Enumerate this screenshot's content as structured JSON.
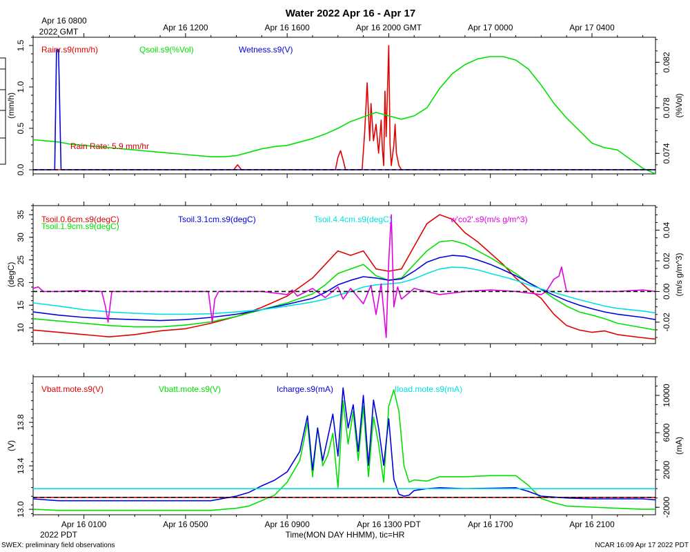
{
  "header": {
    "title": "Water 2022 Apr 16 - Apr 17",
    "gmt_first_line1": "Apr 16 0800",
    "gmt_first_line2": "2022 GMT",
    "gmt_ticks": [
      "Apr 16 1200",
      "Apr 16 1600",
      "Apr 16 2000 GMT",
      "Apr 17 0000",
      "Apr 17 0400"
    ]
  },
  "footer": {
    "pdt_ticks": [
      "Apr 16 0100",
      "Apr 16 0500",
      "Apr 16 0900",
      "Apr 16 1300 PDT",
      "Apr 16 1700",
      "Apr 16 2100"
    ],
    "pdt_year": "2022 PDT",
    "xlabel": "Time(MON DAY HHMM), tic=HR",
    "left_note": "SWEX: preliminary field observations",
    "right_note": "NCAR 16:09 Apr 17 2022 PDT"
  },
  "chart_data": [
    {
      "type": "line",
      "panel": "water",
      "x_unit": "hours since Apr 16 0000 PDT",
      "xlim": [
        -1,
        23.5
      ],
      "left_axis": {
        "label": "(mm/h)",
        "ylim": [
          -0.05,
          1.6
        ],
        "ticks": [
          "0.0",
          "0.5",
          "1.0",
          "1.5"
        ],
        "tick_values": [
          0,
          0.5,
          1.0,
          1.5
        ]
      },
      "right_axis": {
        "label": "(%Vol)",
        "ylim": [
          0.0722,
          0.0842
        ],
        "ticks": [
          "0.074",
          "0.078",
          "0.082"
        ],
        "tick_values": [
          0.074,
          0.078,
          0.082
        ]
      },
      "annotation": "Rain Rate: 5.9 mm/hr",
      "series": [
        {
          "name": "Rainr.s9(mm/h)",
          "color": "#e00000",
          "axis": "left",
          "x": [
            -1,
            6.9,
            7.05,
            7.2,
            10.9,
            11.0,
            11.1,
            11.2,
            11.3,
            11.95,
            12.05,
            12.15,
            12.25,
            12.3,
            12.4,
            12.5,
            12.6,
            12.7,
            12.75,
            12.8,
            12.85,
            12.9,
            13.0,
            13.05,
            13.1,
            13.2,
            13.25,
            13.3,
            13.4,
            13.5,
            23.5
          ],
          "values": [
            0,
            0,
            0.06,
            0,
            0,
            0.15,
            0.23,
            0.12,
            0,
            0,
            0.45,
            1.05,
            0.35,
            0.8,
            0.35,
            0.55,
            0.2,
            0.6,
            0.25,
            0.05,
            0.95,
            0.4,
            1.5,
            0.3,
            0.05,
            0.3,
            0.55,
            0.2,
            0.05,
            0,
            0
          ]
        },
        {
          "name": "Qsoil.s9(%Vol)",
          "color": "#00e000",
          "axis": "right",
          "x": [
            -1,
            -0.5,
            0,
            0.5,
            1,
            1.5,
            2,
            2.5,
            3,
            3.5,
            4,
            4.5,
            5,
            5.5,
            6,
            6.5,
            7,
            7.5,
            8,
            8.5,
            9,
            9.5,
            10,
            10.5,
            11,
            11.5,
            12,
            12.5,
            13,
            13.5,
            14,
            14.5,
            15,
            15.5,
            16,
            16.5,
            17,
            17.5,
            18,
            18.5,
            19,
            19.5,
            20,
            20.5,
            21,
            21.5,
            22,
            22.5,
            23,
            23.5
          ],
          "values": [
            0.0752,
            0.0751,
            0.075,
            0.0748,
            0.0747,
            0.0746,
            0.0745,
            0.0744,
            0.0743,
            0.0742,
            0.0741,
            0.074,
            0.0739,
            0.0738,
            0.0737,
            0.0737,
            0.0738,
            0.0741,
            0.0744,
            0.0746,
            0.0747,
            0.075,
            0.0753,
            0.0757,
            0.0762,
            0.0768,
            0.0772,
            0.0776,
            0.0773,
            0.077,
            0.0773,
            0.078,
            0.0797,
            0.081,
            0.0818,
            0.0823,
            0.0825,
            0.0825,
            0.0822,
            0.0814,
            0.08,
            0.0784,
            0.0771,
            0.076,
            0.0749,
            0.0745,
            0.0743,
            0.0735,
            0.0727,
            0.0722
          ]
        },
        {
          "name": "Wetness.s9(V)",
          "color": "#0000e0",
          "axis": "left",
          "x": [
            -1,
            -0.15,
            -0.08,
            0.0,
            0.1,
            23.5
          ],
          "values": [
            0,
            0,
            1.45,
            1.45,
            0,
            0
          ]
        }
      ],
      "reference_lines": [
        {
          "value": 0,
          "axis": "left",
          "style": "dashed",
          "color": "#000000"
        }
      ]
    },
    {
      "type": "line",
      "panel": "soil temperature",
      "x_unit": "hours since Apr 16 0000 PDT",
      "xlim": [
        -1,
        23.5
      ],
      "left_axis": {
        "label": "(degC)",
        "ylim": [
          6.5,
          37
        ],
        "ticks": [
          "10",
          "15",
          "20",
          "25",
          "30",
          "35"
        ],
        "tick_values": [
          10,
          15,
          20,
          25,
          30,
          35
        ]
      },
      "right_axis": {
        "label": "(m/s g/m^3)",
        "ylim": [
          -0.034,
          0.056
        ],
        "ticks": [
          "-0.02",
          "0.00",
          "0.02",
          "0.04"
        ],
        "tick_values": [
          -0.02,
          0,
          0.02,
          0.04
        ]
      },
      "series": [
        {
          "name": "Tsoil.0.6cm.s9(degC)",
          "color": "#e00000",
          "axis": "left",
          "x": [
            -1,
            0,
            1,
            2,
            3,
            4,
            5,
            6,
            7,
            8,
            9,
            10,
            10.5,
            11,
            11.5,
            12,
            12.5,
            13,
            13.5,
            14,
            14.5,
            15,
            15.5,
            16,
            16.5,
            17,
            17.5,
            18,
            18.5,
            19,
            19.5,
            20,
            20.5,
            21,
            21.5,
            22,
            23,
            23.5
          ],
          "values": [
            9.5,
            9,
            8.5,
            8,
            8.5,
            9.3,
            9.8,
            11,
            12.5,
            14.5,
            17,
            21,
            24,
            27,
            26,
            27,
            23,
            22.5,
            23,
            28,
            33,
            35,
            34,
            31,
            29,
            26.5,
            24,
            21,
            18.5,
            16.5,
            13,
            10.5,
            9.5,
            9,
            9.3,
            8.5,
            7.8,
            7.5
          ]
        },
        {
          "name": "Tsoil.1.9cm.s9(degC)",
          "color": "#00e000",
          "axis": "left",
          "x": [
            -1,
            0,
            1,
            2,
            3,
            4,
            5,
            6,
            7,
            8,
            9,
            10,
            10.5,
            11,
            11.5,
            12,
            12.5,
            13,
            13.5,
            14,
            14.5,
            15,
            15.5,
            16,
            16.5,
            17,
            17.5,
            18,
            18.5,
            19,
            19.5,
            20,
            20.5,
            21,
            21.5,
            22,
            23,
            23.5
          ],
          "values": [
            12,
            11.5,
            11,
            10.5,
            10.2,
            10.2,
            10.6,
            11.3,
            12.5,
            14,
            15.5,
            17.5,
            19.5,
            22,
            23,
            24,
            21.5,
            20.5,
            21,
            24,
            27,
            29,
            29.3,
            28.5,
            27,
            25.5,
            23.8,
            22,
            20,
            18.5,
            16.5,
            14.8,
            13.5,
            12.8,
            12,
            11,
            10,
            9.5
          ]
        },
        {
          "name": "Tsoil.3.1cm.s9(degC)",
          "color": "#0000e0",
          "axis": "left",
          "x": [
            -1,
            0,
            1,
            2,
            3,
            4,
            5,
            6,
            7,
            8,
            9,
            10,
            10.5,
            11,
            11.5,
            12,
            12.5,
            13,
            13.5,
            14,
            14.5,
            15,
            15.5,
            16,
            16.5,
            17,
            17.5,
            18,
            18.5,
            19,
            19.5,
            20,
            20.5,
            21,
            21.5,
            22,
            23,
            23.5
          ],
          "values": [
            13.5,
            12.8,
            12.3,
            12,
            11.8,
            11.6,
            11.8,
            12.3,
            13,
            14,
            15.2,
            16.5,
            17.8,
            19.5,
            20.5,
            21.3,
            21,
            20.5,
            20.8,
            22.5,
            24.5,
            25.5,
            26,
            25.8,
            25,
            24,
            22.8,
            21.5,
            20,
            18.5,
            17.2,
            16,
            15,
            14.2,
            13.5,
            13,
            12.3,
            11.8
          ]
        },
        {
          "name": "Tsoil.4.4cm.s9(degC)",
          "color": "#00e0e0",
          "axis": "left",
          "x": [
            -1,
            0,
            1,
            2,
            3,
            4,
            5,
            6,
            7,
            8,
            9,
            10,
            10.5,
            11,
            11.5,
            12,
            12.5,
            13,
            13.5,
            14,
            14.5,
            15,
            15.5,
            16,
            16.5,
            17,
            17.5,
            18,
            18.5,
            19,
            19.5,
            20,
            20.5,
            21,
            21.5,
            22,
            23,
            23.5
          ],
          "values": [
            15.5,
            14.8,
            14,
            13.5,
            13.2,
            13,
            13,
            13.1,
            13.5,
            14,
            14.8,
            15.7,
            16.3,
            17.2,
            18,
            19,
            19.5,
            19.7,
            20,
            20.8,
            22,
            23,
            23.4,
            23.3,
            22.8,
            22,
            21.3,
            20.5,
            19.5,
            18.6,
            17.8,
            17,
            16.2,
            15.5,
            14.8,
            14.3,
            13.7,
            13.3
          ]
        },
        {
          "name": "w'co2'.s9(m/s g/m^3)",
          "color": "#e000e0",
          "axis": "right",
          "x": [
            -1,
            -0.8,
            -0.6,
            0,
            1,
            1.7,
            1.85,
            1.95,
            2.1,
            3,
            5.9,
            6.05,
            6.15,
            6.3,
            8,
            9,
            9.2,
            9.4,
            10,
            10.5,
            11,
            11.2,
            11.5,
            12,
            12.3,
            12.5,
            12.7,
            12.9,
            13.0,
            13.1,
            13.2,
            13.35,
            13.5,
            14,
            15,
            16,
            17,
            18,
            19,
            19.2,
            19.5,
            19.7,
            19.8,
            20,
            21,
            22,
            23,
            23.5
          ],
          "values": [
            0.002,
            0.003,
            0.0,
            0.0,
            0.0005,
            0.0,
            -0.01,
            -0.02,
            0.0,
            0.0,
            0.0,
            -0.02,
            -0.005,
            0.0,
            0.0,
            -0.002,
            0.001,
            -0.003,
            0.002,
            -0.004,
            0.003,
            -0.005,
            0.002,
            -0.008,
            0.004,
            -0.015,
            0.005,
            -0.03,
            0.02,
            0.05,
            -0.01,
            0.003,
            -0.005,
            0.002,
            -0.002,
            0.0,
            0.001,
            0.0,
            -0.002,
            0.0,
            0.008,
            0.01,
            0.016,
            0.0,
            0.0,
            0.0,
            0.001,
            0.0
          ]
        }
      ],
      "reference_lines": [
        {
          "value": 0,
          "axis": "right",
          "style": "dashed",
          "color": "#000000"
        }
      ]
    },
    {
      "type": "line",
      "panel": "power",
      "x_unit": "hours since Apr 16 0000 PDT",
      "xlim": [
        -1,
        23.5
      ],
      "left_axis": {
        "label": "(V)",
        "ylim": [
          12.95,
          14.22
        ],
        "ticks": [
          "13.0",
          "13.4",
          "13.8"
        ],
        "tick_values": [
          13.0,
          13.4,
          13.8
        ]
      },
      "right_axis": {
        "label": "(mA)",
        "ylim": [
          -2800,
          12000
        ],
        "ticks": [
          "-2000",
          "2000",
          "6000",
          "10000"
        ],
        "tick_values": [
          -2000,
          2000,
          6000,
          10000
        ]
      },
      "series": [
        {
          "name": "Vbatt.mote.s9(V)",
          "color": "#e00000",
          "axis": "left",
          "x": [
            -1,
            23.5
          ],
          "values": [
            13.11,
            13.11
          ]
        },
        {
          "name": "Vbatt.mote.s9(V)",
          "color": "#00e000",
          "axis": "left",
          "x": [
            -1,
            0,
            1,
            2,
            3,
            4,
            5,
            6,
            7,
            7.5,
            8,
            8.5,
            9,
            9.5,
            9.8,
            10.0,
            10.2,
            10.4,
            10.6,
            10.8,
            11.0,
            11.2,
            11.4,
            11.6,
            11.8,
            12.0,
            12.2,
            12.4,
            12.6,
            12.8,
            13.0,
            13.2,
            13.4,
            13.6,
            13.8,
            14,
            14.5,
            15,
            16,
            17,
            18,
            18.5,
            19,
            19.5,
            20,
            21,
            22,
            23,
            23.5
          ],
          "values": [
            13.0,
            12.99,
            12.99,
            12.99,
            12.99,
            12.99,
            12.99,
            12.99,
            13.01,
            13.03,
            13.08,
            13.13,
            13.25,
            13.45,
            13.8,
            13.3,
            13.75,
            13.4,
            13.5,
            13.7,
            13.2,
            14.0,
            13.6,
            13.9,
            13.45,
            13.95,
            13.3,
            13.85,
            13.6,
            13.25,
            13.95,
            14.1,
            13.9,
            13.4,
            13.25,
            13.27,
            13.26,
            13.3,
            13.3,
            13.31,
            13.31,
            13.22,
            13.1,
            13.06,
            13.03,
            13.02,
            13.01,
            13.0,
            13.0
          ]
        },
        {
          "name": "Icharge.s9(mA)",
          "color": "#0000e0",
          "axis": "right",
          "x": [
            -1,
            0,
            1,
            2,
            3,
            4,
            5,
            6,
            7,
            7.5,
            8,
            8.5,
            9,
            9.5,
            9.8,
            10.0,
            10.2,
            10.4,
            10.6,
            10.8,
            11.0,
            11.2,
            11.4,
            11.6,
            11.8,
            12.0,
            12.2,
            12.4,
            12.6,
            12.8,
            13.0,
            13.2,
            13.4,
            13.6,
            13.8,
            14,
            14.5,
            15,
            16,
            17,
            18,
            18.5,
            19,
            20,
            21,
            22,
            23,
            23.5
          ],
          "values": [
            -1100,
            -1300,
            -1300,
            -1300,
            -1300,
            -1300,
            -1300,
            -1300,
            -800,
            -400,
            300,
            900,
            1800,
            4000,
            7800,
            2000,
            6500,
            3000,
            5500,
            8000,
            3500,
            10800,
            6500,
            9000,
            4000,
            10000,
            2500,
            9500,
            6500,
            2500,
            7500,
            1000,
            -600,
            -800,
            -700,
            -200,
            0,
            100,
            0,
            50,
            100,
            -300,
            -800,
            -1000,
            -1100,
            -1100,
            -1100,
            -1200
          ]
        },
        {
          "name": "Iload.mote.s9(mA)",
          "color": "#00e0e0",
          "axis": "right",
          "x": [
            -1,
            23.5
          ],
          "values": [
            0,
            0
          ]
        }
      ],
      "reference_lines": [
        {
          "value": 13.11,
          "axis": "left",
          "style": "dashed",
          "color": "#000000"
        }
      ]
    }
  ]
}
